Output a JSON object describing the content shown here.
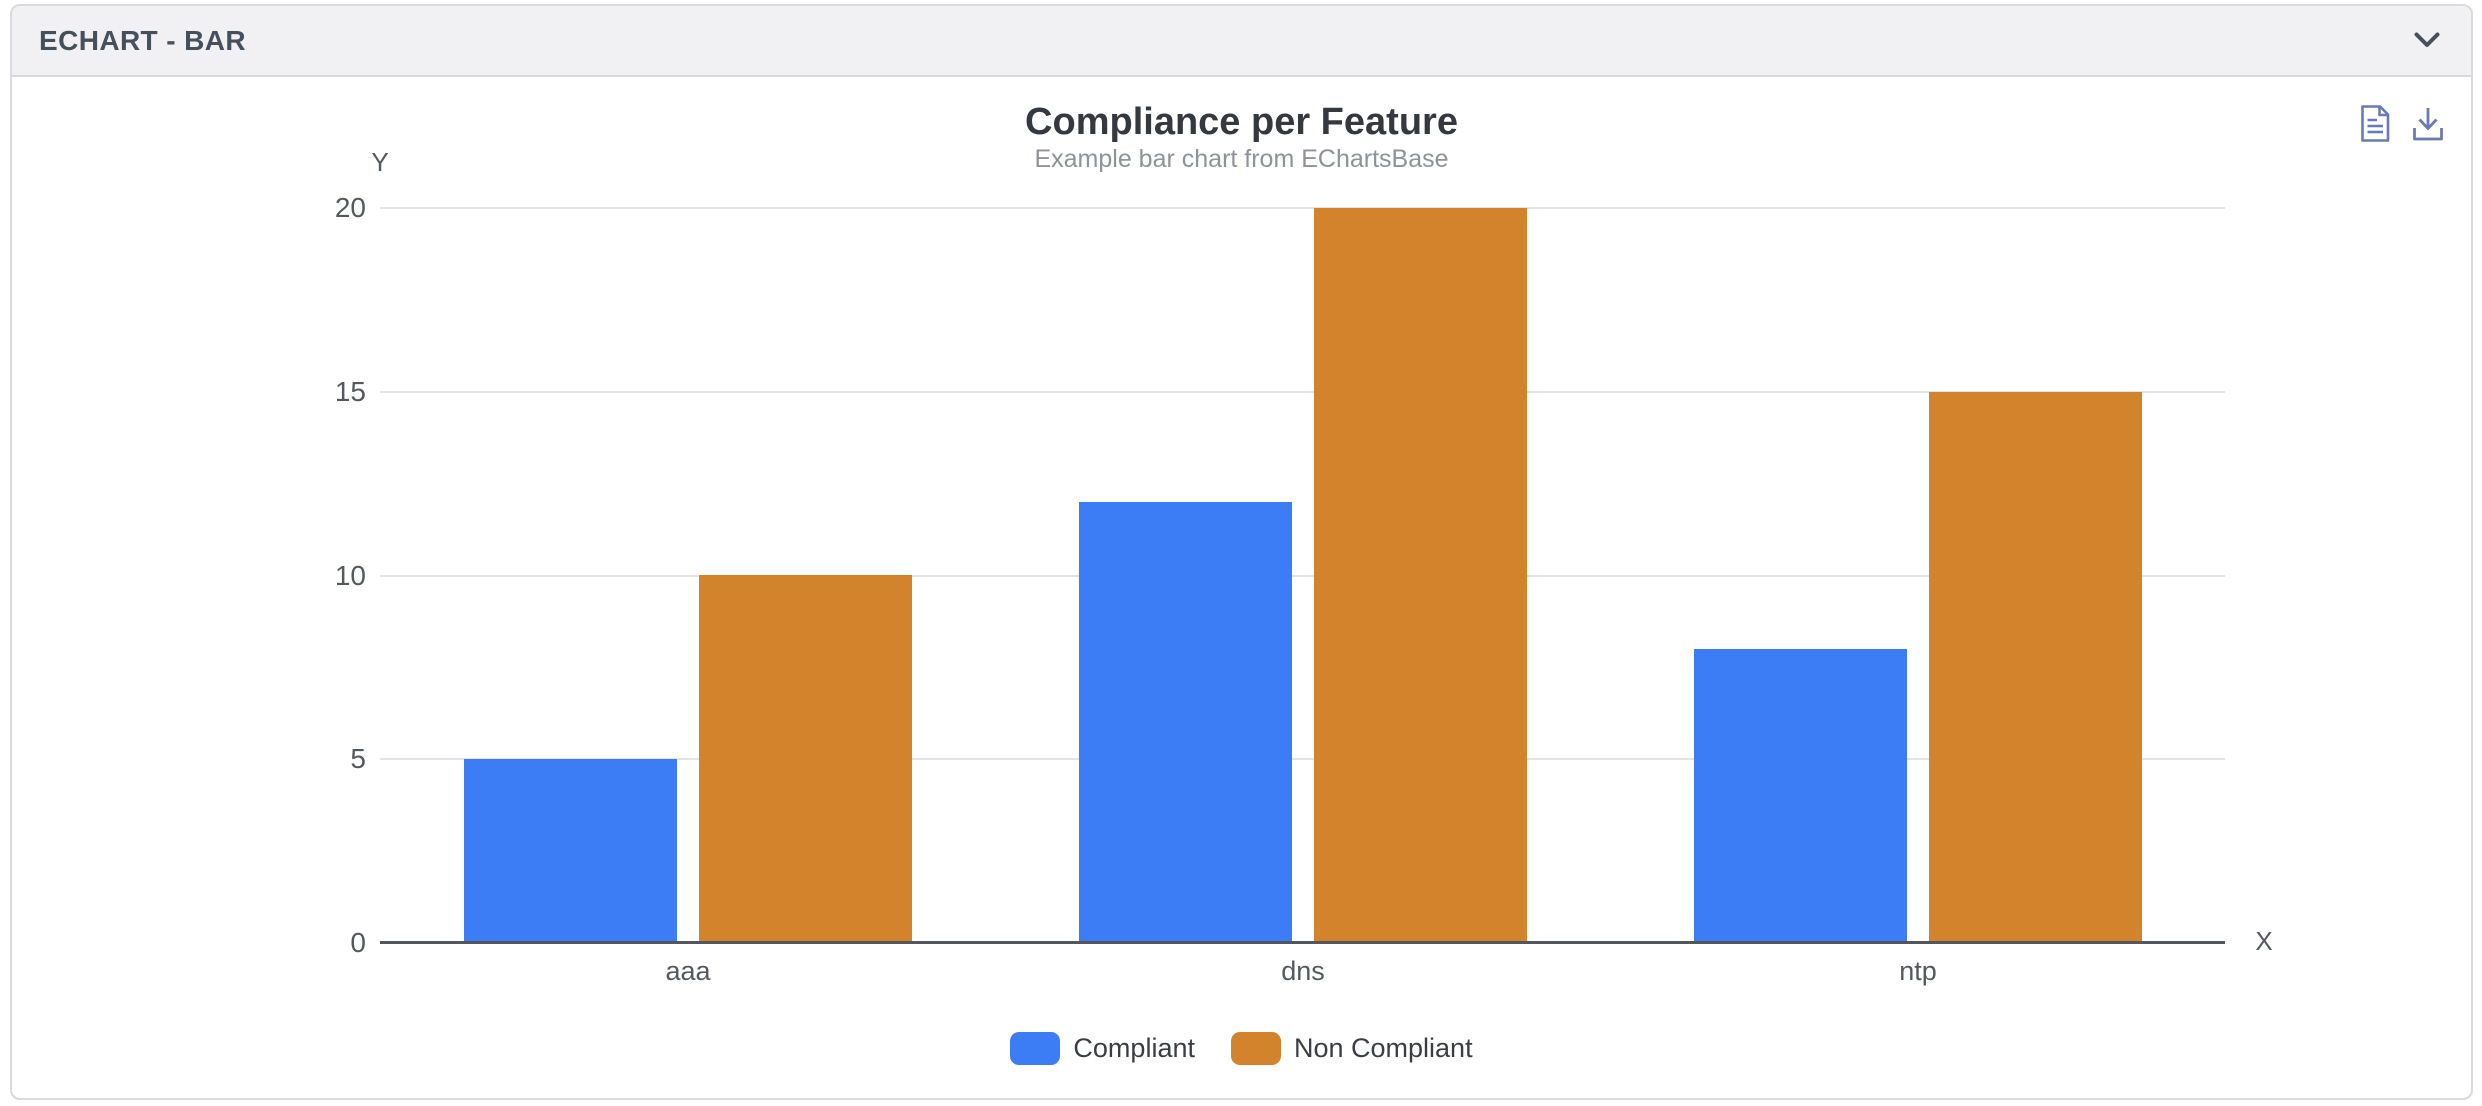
{
  "panel": {
    "title": "ECHART - BAR"
  },
  "toolbox": {
    "color": "#6b79b8",
    "icons": [
      "data-view",
      "save-as-image"
    ]
  },
  "chart_data": {
    "type": "bar",
    "title": "Compliance per Feature",
    "subtitle": "Example bar chart from EChartsBase",
    "xlabel": "X",
    "ylabel": "Y",
    "categories": [
      "aaa",
      "dns",
      "ntp"
    ],
    "series": [
      {
        "name": "Compliant",
        "color": "#3c7df5",
        "values": [
          5,
          12,
          8
        ]
      },
      {
        "name": "Non Compliant",
        "color": "#d4832d",
        "values": [
          10,
          20,
          15
        ]
      }
    ],
    "ylim": [
      0,
      20
    ],
    "yticks": [
      0,
      5,
      10,
      15,
      20
    ],
    "grid": true,
    "legend_position": "bottom"
  }
}
